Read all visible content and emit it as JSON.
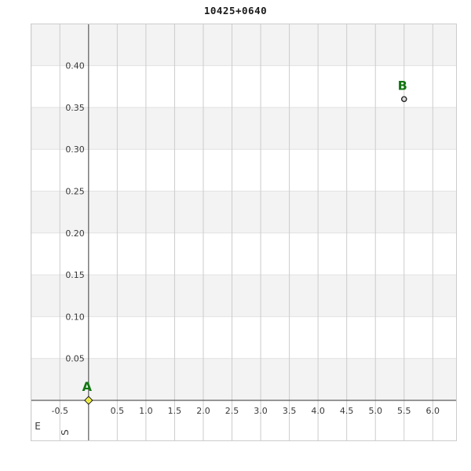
{
  "chart_data": {
    "type": "scatter",
    "title": "10425+0640",
    "xlabel": "E",
    "ylabel": "S",
    "xlim": [
      -1.01,
      6.42
    ],
    "ylim": [
      -0.0488,
      0.4503
    ],
    "x_tick_values": [
      -0.5,
      0.5,
      1.0,
      1.5,
      2.0,
      2.5,
      3.0,
      3.5,
      4.0,
      4.5,
      5.0,
      5.5,
      6.0
    ],
    "x_tick_labels": [
      "-0.5",
      "0.5",
      "1.0",
      "1.5",
      "2.0",
      "2.5",
      "3.0",
      "3.5",
      "4.0",
      "4.5",
      "5.0",
      "5.5",
      "6.0"
    ],
    "y_tick_values": [
      0.05,
      0.1,
      0.15,
      0.2,
      0.25,
      0.3,
      0.35,
      0.4
    ],
    "y_tick_labels": [
      "0.05",
      "0.10",
      "0.15",
      "0.20",
      "0.25",
      "0.30",
      "0.35",
      "0.40"
    ],
    "grid": {
      "v_step": 0.5,
      "h_step": 0.05,
      "bands": true,
      "legend": false
    },
    "series": [
      {
        "label": "A",
        "x": 0.0,
        "y": 0.0,
        "marker": "diamond",
        "marker_fill": "#ffff33",
        "marker_stroke": "#222222"
      },
      {
        "label": "B",
        "x": 5.5,
        "y": 0.36,
        "marker": "circle",
        "marker_fill": "#d8d8d8",
        "marker_stroke": "#1a1a1a"
      }
    ],
    "colors": {
      "band_gray": "#f3f3f3",
      "band_white": "#ffffff",
      "grid_vertical": "#cccccc",
      "grid_horizontal": "#e2e2e2",
      "axis_line": "#5a5a5a",
      "plot_border": "#cccccc",
      "tick_text": "#3a3a3a",
      "point_label_green": "#117611",
      "title_text": "#1a1a1a"
    }
  }
}
